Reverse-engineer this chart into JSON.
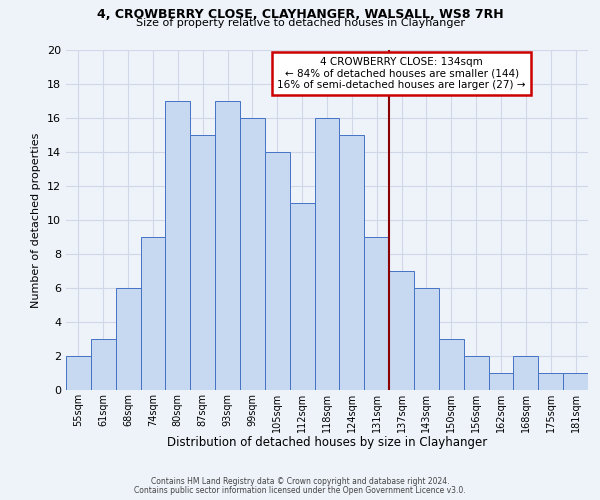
{
  "title_line1": "4, CROWBERRY CLOSE, CLAYHANGER, WALSALL, WS8 7RH",
  "title_line2": "Size of property relative to detached houses in Clayhanger",
  "xlabel": "Distribution of detached houses by size in Clayhanger",
  "ylabel": "Number of detached properties",
  "bar_labels": [
    "55sqm",
    "61sqm",
    "68sqm",
    "74sqm",
    "80sqm",
    "87sqm",
    "93sqm",
    "99sqm",
    "105sqm",
    "112sqm",
    "118sqm",
    "124sqm",
    "131sqm",
    "137sqm",
    "143sqm",
    "150sqm",
    "156sqm",
    "162sqm",
    "168sqm",
    "175sqm",
    "181sqm"
  ],
  "bar_heights": [
    2,
    3,
    6,
    9,
    17,
    15,
    17,
    16,
    14,
    11,
    16,
    15,
    9,
    7,
    6,
    3,
    2,
    1,
    2,
    1,
    1
  ],
  "bar_color": "#c6d9f1",
  "bar_edge_color": "#4472c4",
  "grid_color": "#d0d8e8",
  "vline_color": "#8b0000",
  "annotation_title": "4 CROWBERRY CLOSE: 134sqm",
  "annotation_line1": "← 84% of detached houses are smaller (144)",
  "annotation_line2": "16% of semi-detached houses are larger (27) →",
  "annotation_box_color": "#ffffff",
  "annotation_box_edge": "#cc0000",
  "ylim": [
    0,
    20
  ],
  "yticks": [
    0,
    2,
    4,
    6,
    8,
    10,
    12,
    14,
    16,
    18,
    20
  ],
  "footer_line1": "Contains HM Land Registry data © Crown copyright and database right 2024.",
  "footer_line2": "Contains public sector information licensed under the Open Government Licence v3.0.",
  "background_color": "#eef2f9"
}
